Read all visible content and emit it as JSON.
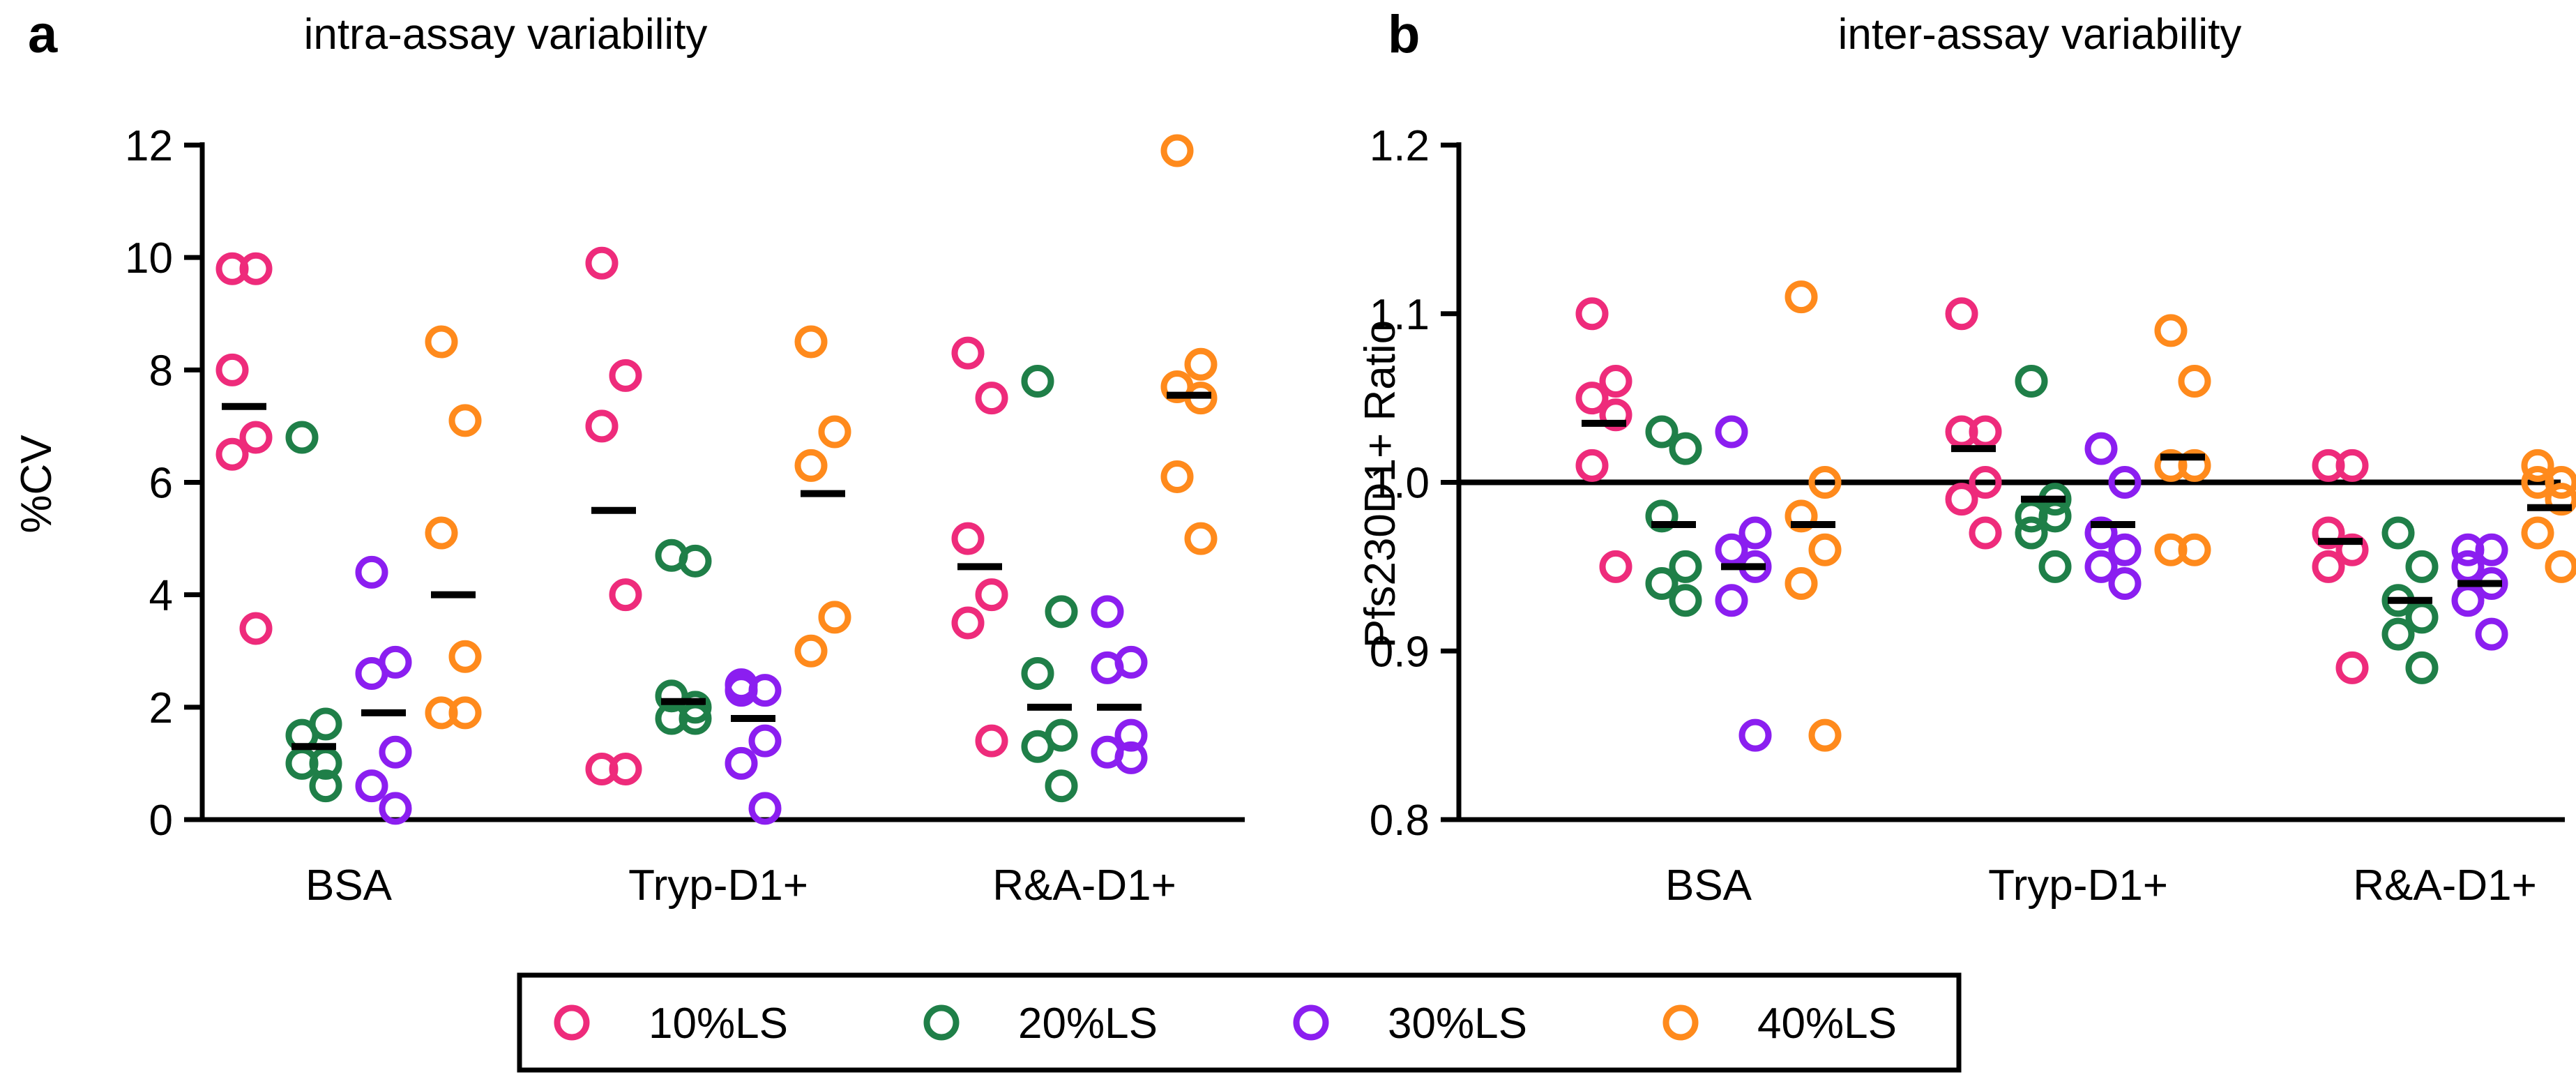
{
  "colors": {
    "10%LS": "#ee2b7b",
    "20%LS": "#1f7f48",
    "30%LS": "#8b1ef0",
    "40%LS": "#ff8a1c",
    "axis": "#000000"
  },
  "legend": [
    {
      "label": "10%LS",
      "color": "#ee2b7b"
    },
    {
      "label": "20%LS",
      "color": "#1f7f48"
    },
    {
      "label": "30%LS",
      "color": "#8b1ef0"
    },
    {
      "label": "40%LS",
      "color": "#ff8a1c"
    }
  ],
  "chart_data": [
    {
      "panel_label": "a",
      "type": "scatter",
      "title": "intra-assay variability",
      "ylabel": "%CV",
      "xlabel": "",
      "ylim": [
        0,
        12
      ],
      "yticks": [
        0,
        2,
        4,
        6,
        8,
        10,
        12
      ],
      "ytick_labels": [
        "0",
        "2",
        "4",
        "6",
        "8",
        "10",
        "12"
      ],
      "categories": [
        "BSA",
        "Tryp-D1+",
        "R&A-D1+"
      ],
      "reference_line": null,
      "series": [
        {
          "name": "10%LS",
          "points": [
            [
              9.8,
              9.8,
              8.0,
              6.8,
              6.5,
              3.4
            ],
            [
              9.9,
              7.9,
              7.0,
              4.0,
              0.9,
              0.9
            ],
            [
              8.3,
              7.5,
              5.0,
              4.0,
              3.5,
              1.4
            ]
          ],
          "means": [
            7.35,
            5.5,
            4.5
          ]
        },
        {
          "name": "20%LS",
          "points": [
            [
              6.8,
              1.7,
              1.5,
              1.0,
              1.0,
              0.6
            ],
            [
              4.7,
              4.6,
              2.2,
              2.0,
              1.8,
              1.8
            ],
            [
              7.8,
              3.7,
              2.6,
              1.5,
              1.3,
              0.6
            ]
          ],
          "means": [
            1.3,
            2.1,
            2.0
          ]
        },
        {
          "name": "30%LS",
          "points": [
            [
              4.4,
              2.8,
              2.6,
              1.2,
              0.6,
              0.2
            ],
            [
              2.4,
              2.3,
              2.3,
              1.4,
              1.0,
              0.2
            ],
            [
              3.7,
              2.8,
              2.7,
              1.5,
              1.2,
              1.1
            ]
          ],
          "means": [
            1.9,
            1.8,
            2.0
          ]
        },
        {
          "name": "40%LS",
          "points": [
            [
              8.5,
              7.1,
              5.1,
              2.9,
              1.9,
              1.9
            ],
            [
              8.5,
              6.9,
              6.3,
              3.6,
              3.0
            ],
            [
              11.9,
              8.1,
              7.7,
              7.5,
              6.1,
              5.0
            ]
          ],
          "means": [
            4.0,
            5.8,
            7.55
          ]
        }
      ]
    },
    {
      "panel_label": "b",
      "type": "scatter",
      "title": "inter-assay variability",
      "ylabel": "Pfs230D1+ Ratio",
      "xlabel": "",
      "ylim": [
        0.8,
        1.2
      ],
      "yticks": [
        0.8,
        0.9,
        1.0,
        1.1,
        1.2
      ],
      "ytick_labels": [
        "0.8",
        "0.9",
        "1.0",
        "1.1",
        "1.2"
      ],
      "categories": [
        "BSA",
        "Tryp-D1+",
        "R&A-D1+"
      ],
      "reference_line": 1.0,
      "series": [
        {
          "name": "10%LS",
          "points": [
            [
              1.1,
              1.06,
              1.05,
              1.04,
              1.01,
              0.95
            ],
            [
              1.1,
              1.03,
              1.03,
              1.0,
              0.99,
              0.97
            ],
            [
              1.01,
              1.01,
              0.97,
              0.96,
              0.95,
              0.89
            ]
          ],
          "means": [
            1.035,
            1.02,
            0.965
          ]
        },
        {
          "name": "20%LS",
          "points": [
            [
              1.03,
              1.02,
              0.98,
              0.95,
              0.94,
              0.93
            ],
            [
              1.06,
              0.99,
              0.98,
              0.98,
              0.97,
              0.95
            ],
            [
              0.97,
              0.95,
              0.93,
              0.92,
              0.91,
              0.89
            ]
          ],
          "means": [
            0.975,
            0.99,
            0.93
          ]
        },
        {
          "name": "30%LS",
          "points": [
            [
              1.03,
              0.97,
              0.96,
              0.95,
              0.93,
              0.85
            ],
            [
              1.02,
              1.0,
              0.97,
              0.96,
              0.95,
              0.94
            ],
            [
              0.96,
              0.96,
              0.95,
              0.94,
              0.93,
              0.91
            ]
          ],
          "means": [
            0.95,
            0.975,
            0.94
          ]
        },
        {
          "name": "40%LS",
          "points": [
            [
              1.11,
              1.0,
              0.98,
              0.96,
              0.94,
              0.85
            ],
            [
              1.09,
              1.06,
              1.01,
              1.01,
              0.96,
              0.96
            ],
            [
              1.01,
              1.0,
              1.0,
              0.99,
              0.97,
              0.95
            ]
          ],
          "means": [
            0.975,
            1.015,
            0.985
          ]
        }
      ]
    }
  ]
}
